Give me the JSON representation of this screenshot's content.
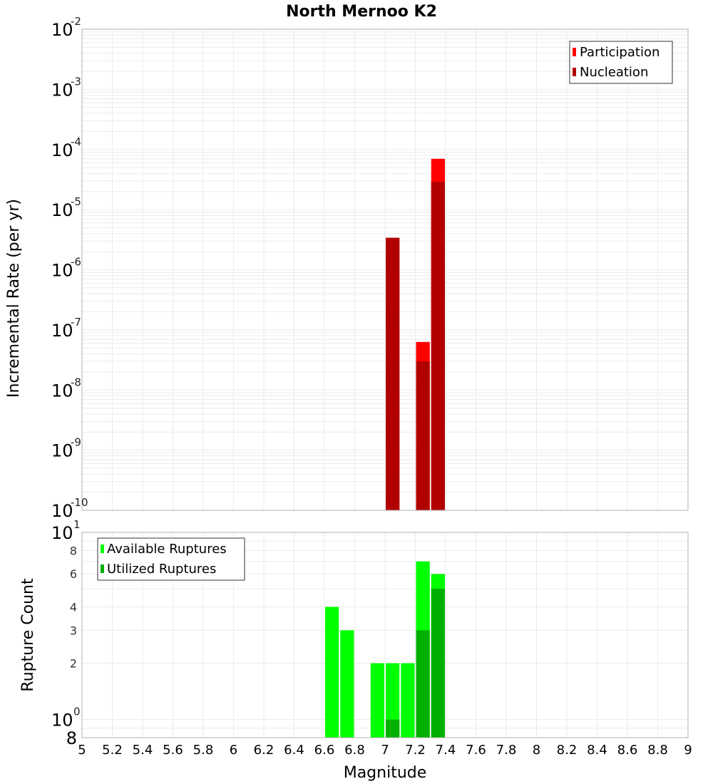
{
  "title": "North Mernoo K2",
  "chart_data": [
    {
      "type": "bar",
      "title": "North Mernoo K2",
      "xlabel": "Magnitude",
      "ylabel": "Incremental Rate (per yr)",
      "yscale": "log",
      "ylim": [
        1e-10,
        0.01
      ],
      "xlim": [
        5,
        9
      ],
      "grid": true,
      "legend_position": "top-right",
      "bar_width": 0.1,
      "x": [
        7.05,
        7.25,
        7.35
      ],
      "series": [
        {
          "name": "Participation",
          "color": "#ff0000",
          "values": [
            3.4e-06,
            6.3e-08,
            7e-05
          ]
        },
        {
          "name": "Nucleation",
          "color": "#b20000",
          "values": [
            3.4e-06,
            3e-08,
            2.9e-05
          ]
        }
      ],
      "ytick_labels": [
        "10^-2",
        "10^-3",
        "10^-4",
        "10^-5",
        "10^-6",
        "10^-7",
        "10^-8",
        "10^-9",
        "10^-10"
      ]
    },
    {
      "type": "bar",
      "xlabel": "Magnitude",
      "ylabel": "Rupture Count",
      "yscale": "log",
      "ylim": [
        0.8,
        10
      ],
      "xlim": [
        5,
        9
      ],
      "grid": true,
      "legend_position": "top-left",
      "bar_width": 0.1,
      "x": [
        6.65,
        6.75,
        6.95,
        7.05,
        7.15,
        7.25,
        7.35
      ],
      "series": [
        {
          "name": "Available Ruptures",
          "color": "#00ff00",
          "values": [
            4,
            3,
            2,
            2,
            2,
            7,
            6
          ]
        },
        {
          "name": "Utilized Ruptures",
          "color": "#00b000",
          "values": [
            0,
            0,
            0,
            1,
            0,
            3,
            5
          ]
        }
      ],
      "ytick_labels": [
        "10^1",
        "8",
        "6",
        "4",
        "3",
        "2",
        "10^0",
        "8"
      ]
    }
  ],
  "x_ticks": [
    "5",
    "5.2",
    "5.4",
    "5.6",
    "5.8",
    "6",
    "6.2",
    "6.4",
    "6.6",
    "6.8",
    "7",
    "7.2",
    "7.4",
    "7.6",
    "7.8",
    "8",
    "8.2",
    "8.4",
    "8.6",
    "8.8",
    "9"
  ],
  "top_legend": [
    {
      "label": "Participation",
      "color": "#ff0000"
    },
    {
      "label": "Nucleation",
      "color": "#b20000"
    }
  ],
  "bottom_legend": [
    {
      "label": "Available Ruptures",
      "color": "#00ff00"
    },
    {
      "label": "Utilized Ruptures",
      "color": "#00b000"
    }
  ],
  "top_y_major": [
    {
      "base": "10",
      "exp": "-2"
    },
    {
      "base": "10",
      "exp": "-3"
    },
    {
      "base": "10",
      "exp": "-4"
    },
    {
      "base": "10",
      "exp": "-5"
    },
    {
      "base": "10",
      "exp": "-6"
    },
    {
      "base": "10",
      "exp": "-7"
    },
    {
      "base": "10",
      "exp": "-8"
    },
    {
      "base": "10",
      "exp": "-9"
    },
    {
      "base": "10",
      "exp": "-10"
    }
  ],
  "bottom_y": {
    "major_top": {
      "base": "10",
      "exp": "1"
    },
    "major_mid": {
      "base": "10",
      "exp": "0"
    },
    "minor": [
      "8",
      "6",
      "4",
      "3",
      "2"
    ],
    "bottom_minor": "8"
  },
  "xlabel": "Magnitude",
  "top_ylabel": "Incremental Rate (per yr)",
  "bottom_ylabel": "Rupture Count"
}
